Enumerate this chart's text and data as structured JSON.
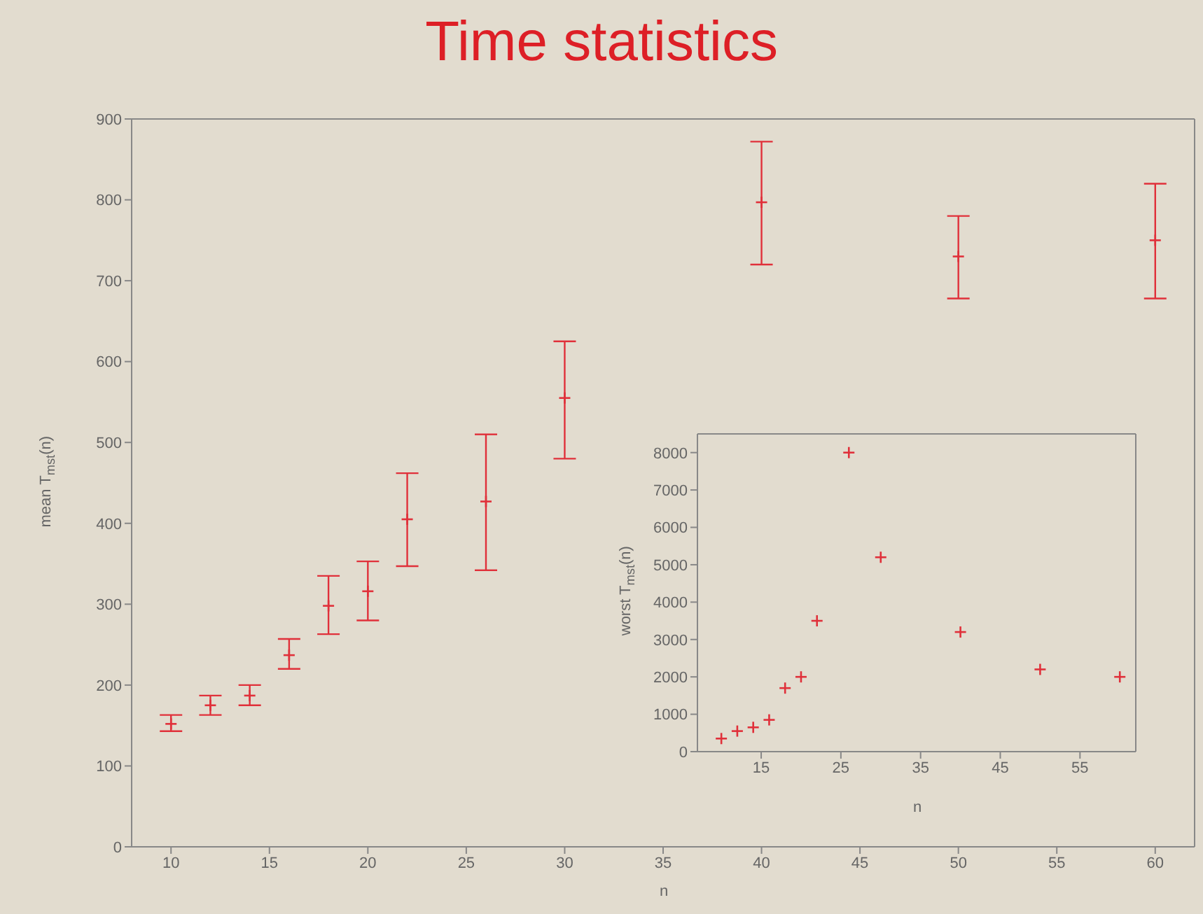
{
  "chart_data": [
    {
      "type": "scatter",
      "title": "Time statistics",
      "xlabel": "n",
      "ylabel": "mean T$_{mst}$(n)",
      "x": [
        10,
        12,
        14,
        16,
        18,
        20,
        22,
        26,
        30,
        40,
        50,
        60
      ],
      "series": [
        {
          "color": "#e0303a",
          "values": [
            152,
            175,
            187,
            237,
            298,
            316,
            405,
            427,
            555,
            797,
            730,
            750
          ],
          "errors": [
            [
              143,
              163
            ],
            [
              163,
              187
            ],
            [
              175,
              200
            ],
            [
              220,
              257
            ],
            [
              263,
              335
            ],
            [
              280,
              353
            ],
            [
              347,
              462
            ],
            [
              342,
              510
            ],
            [
              480,
              625
            ],
            [
              720,
              872
            ],
            [
              678,
              780
            ],
            [
              678,
              820
            ]
          ]
        }
      ],
      "xlim": [
        8,
        62
      ],
      "ylim": [
        0,
        900
      ],
      "xticks": [
        10,
        15,
        20,
        25,
        30,
        35,
        40,
        45,
        50,
        55,
        60
      ],
      "yticks": [
        0,
        100,
        200,
        300,
        400,
        500,
        600,
        700,
        800,
        900
      ],
      "grid": false,
      "marker": "cross"
    },
    {
      "type": "scatter",
      "xlabel": "n",
      "ylabel": "worst T$_{mst}$(n)",
      "x": [
        10,
        12,
        14,
        16,
        18,
        20,
        22,
        26,
        30,
        40,
        50,
        60
      ],
      "series": [
        {
          "color": "#e0303a",
          "values": [
            350,
            550,
            650,
            850,
            1700,
            2000,
            3500,
            8000,
            5200,
            3200,
            2200,
            2000
          ]
        }
      ],
      "xlim": [
        7,
        62
      ],
      "ylim": [
        0,
        8500
      ],
      "xticks": [
        15,
        25,
        35,
        45,
        55
      ],
      "yticks": [
        0,
        1000,
        2000,
        3000,
        4000,
        5000,
        6000,
        7000,
        8000
      ],
      "grid": false,
      "marker": "cross"
    }
  ]
}
